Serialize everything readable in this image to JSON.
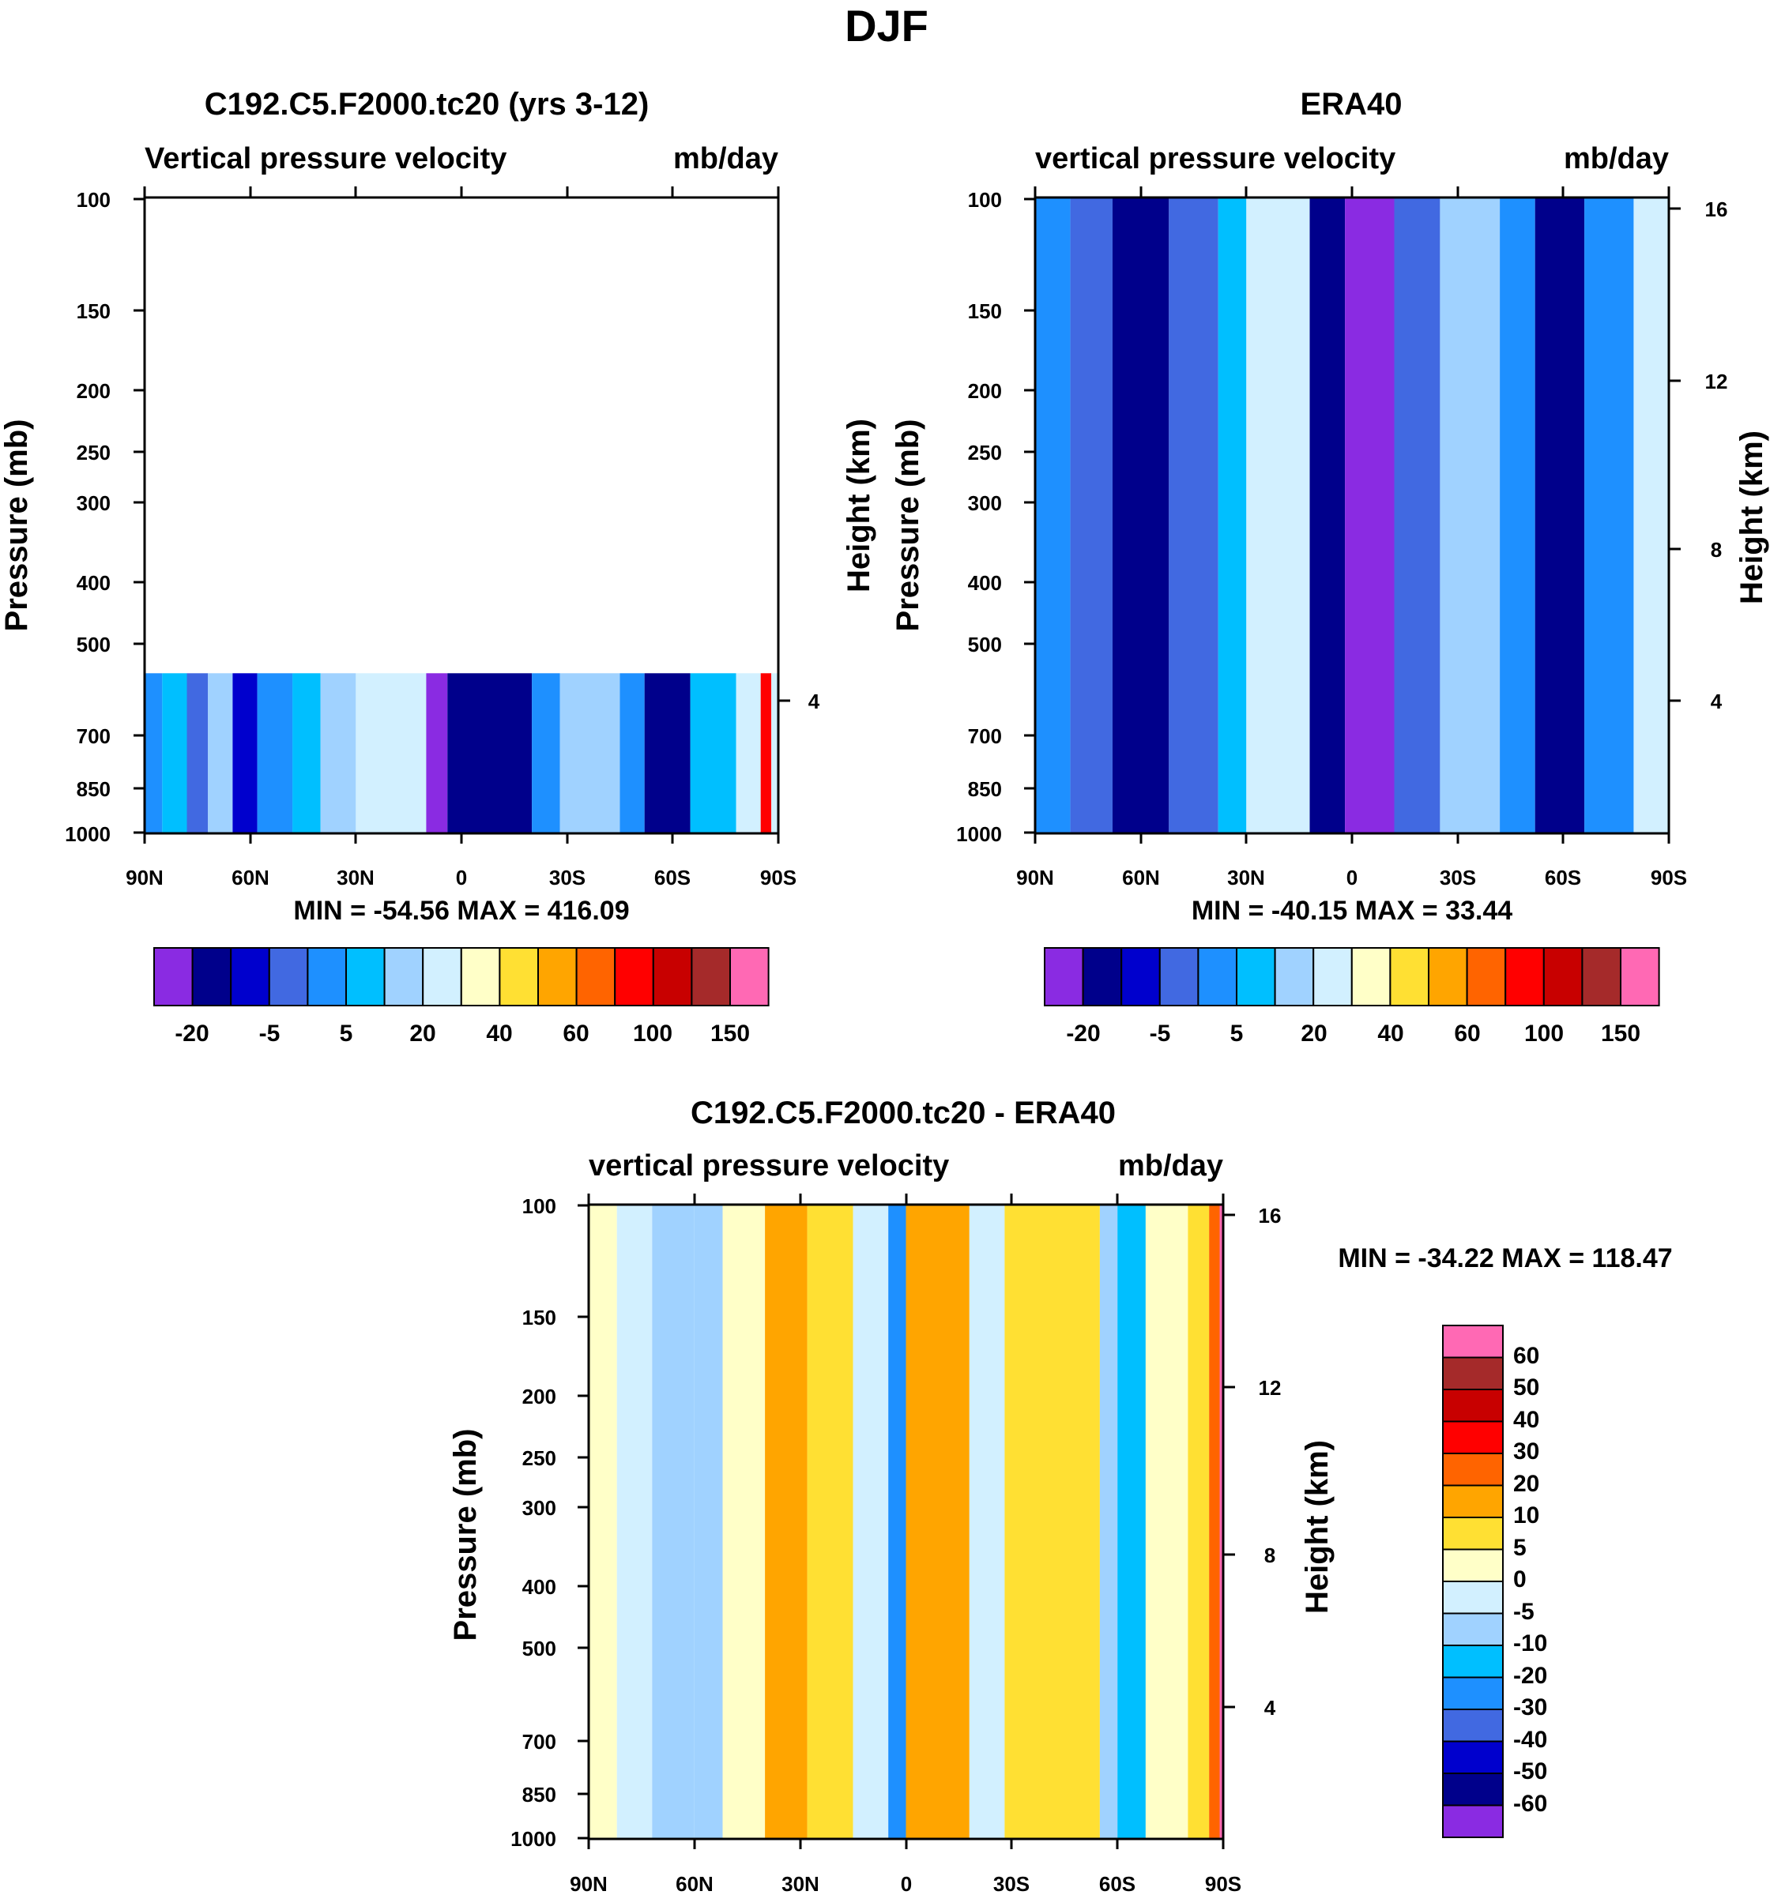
{
  "figure": {
    "title": "DJF"
  },
  "colors": {
    "main_levels": [
      "#8a2be2",
      "#00008b",
      "#0000cd",
      "#4169e1",
      "#1e90ff",
      "#00bfff",
      "#a0d2ff",
      "#d2f0ff",
      "#ffffc8",
      "#ffe033",
      "#ffa500",
      "#ff6400",
      "#ff0000",
      "#c80000",
      "#a52a2a",
      "#ff69b4"
    ],
    "diff_levels": [
      "#8a2be2",
      "#00008b",
      "#0000cd",
      "#4169e1",
      "#1e90ff",
      "#00bfff",
      "#a0d2ff",
      "#d2f0ff",
      "#ffffc8",
      "#ffe033",
      "#ffa500",
      "#ff6400",
      "#ff0000",
      "#c80000",
      "#a52a2a",
      "#ff69b4"
    ]
  },
  "chart_data": [
    {
      "type": "heatmap",
      "panel": "model",
      "title": "C192.C5.F2000.tc20 (yrs 3-12)",
      "left_label": "Vertical pressure velocity",
      "right_label": "mb/day",
      "ylabel": "Pressure (mb)",
      "right_axis_label": "",
      "pressure_ticks": [
        "100",
        "150",
        "200",
        "250",
        "300",
        "400",
        "500",
        "700",
        "850",
        "1000"
      ],
      "height_ticks": [
        "4"
      ],
      "lat_ticks": [
        "90N",
        "60N",
        "30N",
        "0",
        "30S",
        "60S",
        "90S"
      ],
      "ylim_mb": [
        1000,
        100
      ],
      "stats": "MIN = -54.56  MAX = 416.09",
      "colorbar_labels": [
        "-20",
        "-5",
        "5",
        "20",
        "40",
        "60",
        "100",
        "150"
      ],
      "columns": [
        {
          "lat": [
            90,
            85
          ],
          "level": 4
        },
        {
          "lat": [
            85,
            78
          ],
          "level": 5
        },
        {
          "lat": [
            78,
            72
          ],
          "level": 3
        },
        {
          "lat": [
            72,
            65
          ],
          "level": 6
        },
        {
          "lat": [
            65,
            58
          ],
          "level": 2
        },
        {
          "lat": [
            58,
            48
          ],
          "level": 4
        },
        {
          "lat": [
            48,
            40
          ],
          "level": 5
        },
        {
          "lat": [
            40,
            30
          ],
          "level": 6
        },
        {
          "lat": [
            30,
            10
          ],
          "level": 7
        },
        {
          "lat": [
            10,
            4
          ],
          "level": 0
        },
        {
          "lat": [
            4,
            -20
          ],
          "level": 1
        },
        {
          "lat": [
            -20,
            -28
          ],
          "level": 4
        },
        {
          "lat": [
            -28,
            -45
          ],
          "level": 6
        },
        {
          "lat": [
            -45,
            -52
          ],
          "level": 4
        },
        {
          "lat": [
            -52,
            -65
          ],
          "level": 1
        },
        {
          "lat": [
            -65,
            -78
          ],
          "level": 5
        },
        {
          "lat": [
            -78,
            -85
          ],
          "level": 7
        },
        {
          "lat": [
            -85,
            -88
          ],
          "level": 12
        },
        {
          "lat": [
            -88,
            -90
          ],
          "level": 7
        }
      ]
    },
    {
      "type": "heatmap",
      "panel": "obs",
      "title": "ERA40",
      "left_label": "vertical pressure velocity",
      "right_label": "mb/day",
      "ylabel": "Pressure (mb)",
      "right_axis_label": "Height (km)",
      "outer_left_label": "Height (km)",
      "pressure_ticks": [
        "100",
        "150",
        "200",
        "250",
        "300",
        "400",
        "500",
        "700",
        "850",
        "1000"
      ],
      "height_ticks": [
        "16",
        "12",
        "8",
        "4"
      ],
      "lat_ticks": [
        "90N",
        "60N",
        "30N",
        "0",
        "30S",
        "60S",
        "90S"
      ],
      "ylim_mb": [
        1000,
        100
      ],
      "stats": "MIN = -40.15   MAX =  33.44",
      "colorbar_labels": [
        "-20",
        "-5",
        "5",
        "20",
        "40",
        "60",
        "100",
        "150"
      ],
      "columns": [
        {
          "lat": [
            90,
            80
          ],
          "level": 4
        },
        {
          "lat": [
            80,
            68
          ],
          "level": 3
        },
        {
          "lat": [
            68,
            52
          ],
          "level": 1
        },
        {
          "lat": [
            52,
            38
          ],
          "level": 3
        },
        {
          "lat": [
            38,
            30
          ],
          "level": 5
        },
        {
          "lat": [
            30,
            12
          ],
          "level": 7
        },
        {
          "lat": [
            12,
            2
          ],
          "level": 1
        },
        {
          "lat": [
            2,
            -12
          ],
          "level": 0
        },
        {
          "lat": [
            -12,
            -25
          ],
          "level": 3
        },
        {
          "lat": [
            -25,
            -42
          ],
          "level": 6
        },
        {
          "lat": [
            -42,
            -52
          ],
          "level": 4
        },
        {
          "lat": [
            -52,
            -66
          ],
          "level": 1
        },
        {
          "lat": [
            -66,
            -80
          ],
          "level": 4
        },
        {
          "lat": [
            -80,
            -90
          ],
          "level": 7
        }
      ]
    },
    {
      "type": "heatmap",
      "panel": "difference",
      "title": "C192.C5.F2000.tc20 - ERA40",
      "left_label": "vertical pressure velocity",
      "right_label": "mb/day",
      "ylabel": "Pressure (mb)",
      "right_axis_label": "Height (km)",
      "pressure_ticks": [
        "100",
        "150",
        "200",
        "250",
        "300",
        "400",
        "500",
        "700",
        "850",
        "1000"
      ],
      "height_ticks": [
        "16",
        "12",
        "8",
        "4"
      ],
      "lat_ticks": [
        "90N",
        "60N",
        "30N",
        "0",
        "30S",
        "60S",
        "90S"
      ],
      "ylim_mb": [
        1000,
        100
      ],
      "stats": "MIN = -34.22   MAX = 118.47",
      "colorbar_labels": [
        "60",
        "50",
        "40",
        "30",
        "20",
        "10",
        "5",
        "0",
        "-5",
        "-10",
        "-20",
        "-30",
        "-40",
        "-50",
        "-60"
      ],
      "columns": [
        {
          "lat": [
            90,
            82
          ],
          "level": 8
        },
        {
          "lat": [
            82,
            72
          ],
          "level": 7
        },
        {
          "lat": [
            72,
            60
          ],
          "level": 6
        },
        {
          "lat": [
            60,
            52
          ],
          "level": 6
        },
        {
          "lat": [
            52,
            40
          ],
          "level": 8
        },
        {
          "lat": [
            40,
            28
          ],
          "level": 10
        },
        {
          "lat": [
            28,
            15
          ],
          "level": 9
        },
        {
          "lat": [
            15,
            5
          ],
          "level": 7
        },
        {
          "lat": [
            5,
            0
          ],
          "level": 4
        },
        {
          "lat": [
            0,
            -18
          ],
          "level": 10
        },
        {
          "lat": [
            -18,
            -28
          ],
          "level": 7
        },
        {
          "lat": [
            -28,
            -55
          ],
          "level": 9
        },
        {
          "lat": [
            -55,
            -60
          ],
          "level": 6
        },
        {
          "lat": [
            -60,
            -68
          ],
          "level": 5
        },
        {
          "lat": [
            -68,
            -80
          ],
          "level": 8
        },
        {
          "lat": [
            -80,
            -86
          ],
          "level": 9
        },
        {
          "lat": [
            -86,
            -89
          ],
          "level": 11
        },
        {
          "lat": [
            -89,
            -90
          ],
          "level": 15
        }
      ]
    }
  ]
}
